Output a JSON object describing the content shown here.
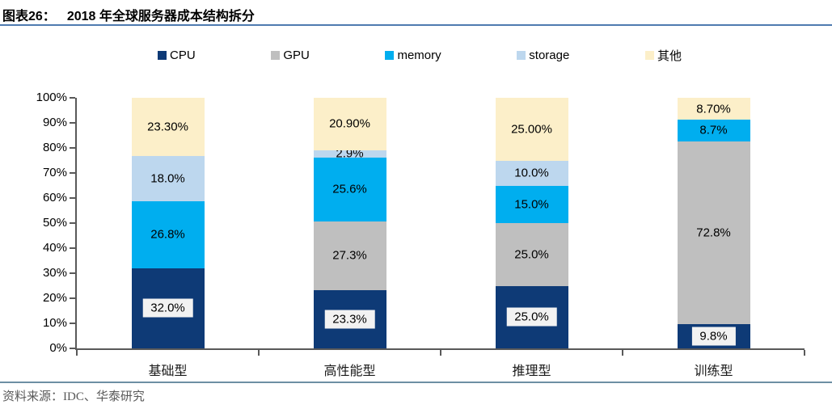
{
  "header": {
    "figure_label": "图表26：",
    "title": "2018 年全球服务器成本结构拆分"
  },
  "footer": {
    "source": "资料来源：IDC、华泰研究"
  },
  "colors": {
    "cpu": "#0E3A76",
    "gpu": "#BFBFBF",
    "memory": "#00AEEF",
    "storage": "#BDD7EE",
    "other": "#FCEFC9",
    "axis": "#595959",
    "title_rule": "#4F7BB0",
    "footer_rule": "#6D8FA3",
    "cpu_label_bg": "#F2F2F2"
  },
  "chart_data": {
    "type": "bar",
    "stacked": true,
    "title": "2018 年全球服务器成本结构拆分",
    "categories": [
      "基础型",
      "高性能型",
      "推理型",
      "训练型"
    ],
    "series": [
      {
        "name": "CPU",
        "key": "cpu",
        "values": [
          32.0,
          23.3,
          25.0,
          9.8
        ],
        "labels": [
          "32.0%",
          "23.3%",
          "25.0%",
          "9.8%"
        ],
        "label_boxed": true
      },
      {
        "name": "GPU",
        "key": "gpu",
        "values": [
          0,
          27.3,
          25.0,
          72.8
        ],
        "labels": [
          "",
          "27.3%",
          "25.0%",
          "72.8%"
        ],
        "label_boxed": false
      },
      {
        "name": "memory",
        "key": "memory",
        "values": [
          26.8,
          25.6,
          15.0,
          8.7
        ],
        "labels": [
          "26.8%",
          "25.6%",
          "15.0%",
          "8.7%"
        ],
        "label_boxed": false
      },
      {
        "name": "storage",
        "key": "storage",
        "values": [
          18.0,
          2.9,
          10.0,
          0
        ],
        "labels": [
          "18.0%",
          "2.9%",
          "10.0%",
          ""
        ],
        "label_boxed": false
      },
      {
        "name": "其他",
        "key": "other",
        "values": [
          23.3,
          20.9,
          25.0,
          8.7
        ],
        "labels": [
          "23.30%",
          "20.90%",
          "25.00%",
          "8.70%"
        ],
        "label_boxed": false
      }
    ],
    "y_axis": {
      "ticks": [
        "0%",
        "10%",
        "20%",
        "30%",
        "40%",
        "50%",
        "60%",
        "70%",
        "80%",
        "90%",
        "100%"
      ],
      "ylim": [
        0,
        100
      ]
    },
    "legend": [
      "CPU",
      "GPU",
      "memory",
      "storage",
      "其他"
    ],
    "legend_position": "top",
    "grid": false
  }
}
